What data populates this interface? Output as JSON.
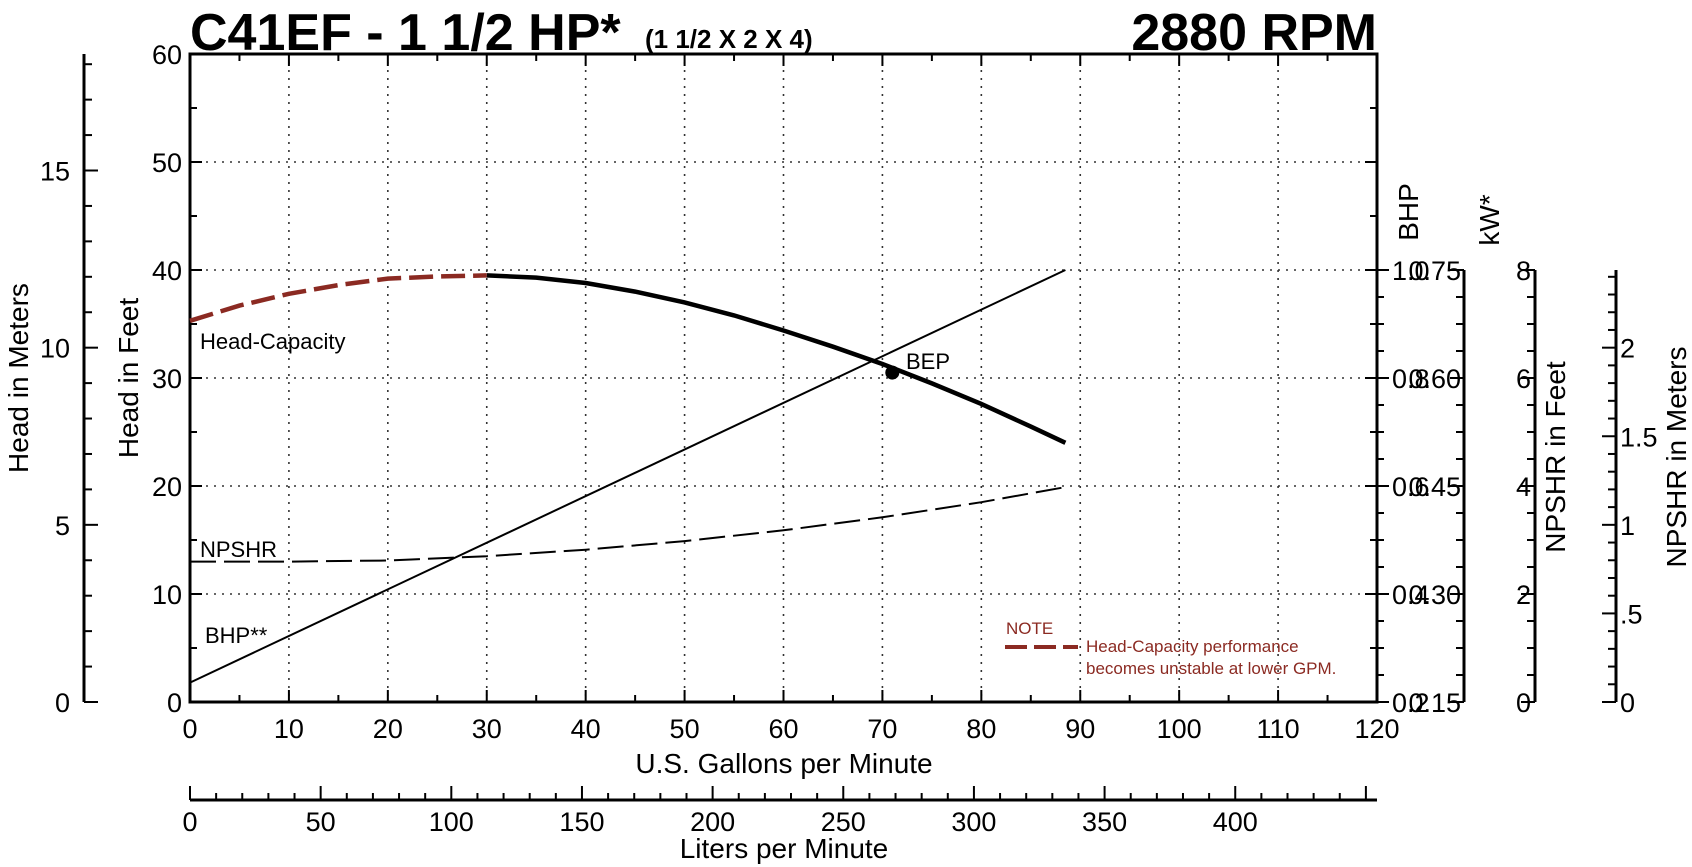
{
  "chart_data": {
    "type": "line",
    "title": "C41EF - 1 1/2 HP*",
    "subtitle": "(1 1/2 X 2 X 4)",
    "rpm_label": "2880 RPM",
    "xlabel": "U.S. Gallons per Minute",
    "xlim": [
      0,
      120
    ],
    "x_ticks": [
      0,
      10,
      20,
      30,
      40,
      50,
      60,
      70,
      80,
      90,
      100,
      110,
      120
    ],
    "x2label": "Liters per Minute",
    "x2_ticks": [
      0,
      50,
      100,
      150,
      200,
      250,
      300,
      350,
      400
    ],
    "ylabel": "Head in Feet",
    "ylim": [
      0,
      60
    ],
    "y_ticks": [
      0,
      10,
      20,
      30,
      40,
      50,
      60
    ],
    "y_meters_label": "Head in Meters",
    "y_meters_ticks": [
      0,
      5,
      10,
      15
    ],
    "bhp_label": "BHP",
    "bhp_ticks": [
      "0.2",
      "0.4",
      "0.6",
      "0.8",
      "1.0"
    ],
    "kw_label": "kW*",
    "kw_ticks": [
      "0.15",
      "0.30",
      "0.45",
      "0.60",
      "0.75"
    ],
    "npshr_feet_label": "NPSHR in Feet",
    "npshr_feet_ticks": [
      "0",
      "2",
      "4",
      "6",
      "8"
    ],
    "npshr_meters_label": "NPSHR in Meters",
    "npshr_meters_ticks": [
      "0",
      ".5",
      "1",
      "1.5",
      "2"
    ],
    "grid": true,
    "series": [
      {
        "name": "Head-Capacity",
        "axis": "head_ft",
        "points": [
          [
            0,
            35.3
          ],
          [
            5,
            36.7
          ],
          [
            10,
            37.8
          ],
          [
            15,
            38.6
          ],
          [
            20,
            39.2
          ],
          [
            25,
            39.4
          ],
          [
            30,
            39.5
          ],
          [
            35,
            39.3
          ],
          [
            40,
            38.8
          ],
          [
            45,
            38.0
          ],
          [
            50,
            37.0
          ],
          [
            55,
            35.8
          ],
          [
            60,
            34.4
          ],
          [
            65,
            32.9
          ],
          [
            70,
            31.3
          ],
          [
            75,
            29.5
          ],
          [
            80,
            27.6
          ],
          [
            85,
            25.5
          ],
          [
            88.5,
            24.0
          ]
        ],
        "unstable_below_gpm": 30,
        "color": "#000000",
        "unstable_color": "#8b2a22"
      },
      {
        "name": "BHP**",
        "axis": "bhp",
        "points": [
          [
            0,
            0.236
          ],
          [
            88.5,
            1.0
          ]
        ],
        "color": "#000000"
      },
      {
        "name": "NPSHR",
        "axis": "npshr_ft",
        "points": [
          [
            0,
            2.6
          ],
          [
            10,
            2.6
          ],
          [
            20,
            2.62
          ],
          [
            30,
            2.7
          ],
          [
            40,
            2.82
          ],
          [
            50,
            2.98
          ],
          [
            60,
            3.18
          ],
          [
            70,
            3.42
          ],
          [
            80,
            3.7
          ],
          [
            88.5,
            3.98
          ]
        ],
        "dashed": true,
        "color": "#000000"
      }
    ],
    "bep": {
      "label": "BEP",
      "x": 71,
      "y": 30.5
    },
    "note": {
      "heading": "NOTE",
      "line1": "Head-Capacity performance",
      "line2": "becomes unstable at lower GPM.",
      "color": "#8b2a22"
    }
  }
}
